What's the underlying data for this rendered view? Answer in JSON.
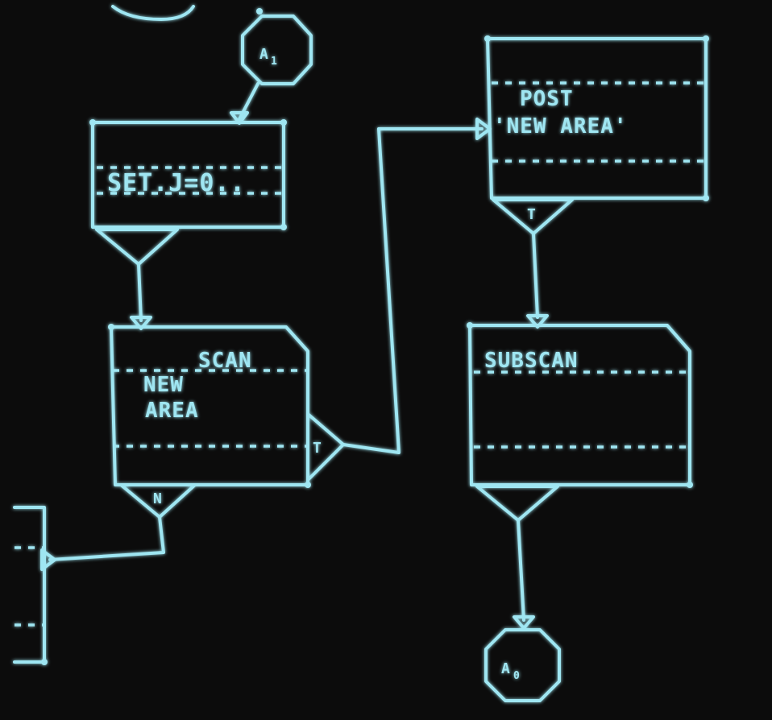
{
  "colors": {
    "background": "#0c0c0c",
    "line": "#9fe6f2",
    "glow": "#3fb7d4"
  },
  "connectors": {
    "top_connector": {
      "letter": "A",
      "subscript": "1"
    },
    "bottom_connector": {
      "letter": "A",
      "subscript": "0"
    }
  },
  "boxes": {
    "set_box": {
      "text": "SET.J=0.."
    },
    "scan_box": {
      "header": "SCAN",
      "line1": "NEW",
      "line2": "AREA"
    },
    "post_box": {
      "line1": "POST",
      "line2": "'NEW AREA'"
    },
    "subscan_box": {
      "header": "SUBSCAN"
    }
  },
  "branches": {
    "scan_true": "T",
    "scan_false": "N",
    "post_exit": "T"
  }
}
